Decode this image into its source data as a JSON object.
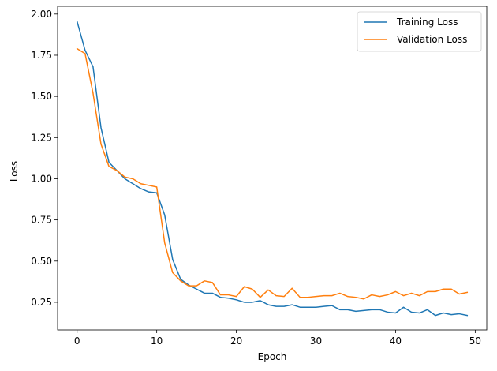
{
  "chart_data": {
    "type": "line",
    "title": "",
    "xlabel": "Epoch",
    "ylabel": "Loss",
    "xlim": [
      -2.45,
      51.45
    ],
    "ylim": [
      0.082,
      2.047
    ],
    "xticks": [
      0,
      10,
      20,
      30,
      40,
      50
    ],
    "xtick_labels": [
      "0",
      "10",
      "20",
      "30",
      "40",
      "50"
    ],
    "yticks": [
      0.25,
      0.5,
      0.75,
      1.0,
      1.25,
      1.5,
      1.75,
      2.0
    ],
    "ytick_labels": [
      "0.25",
      "0.50",
      "0.75",
      "1.00",
      "1.25",
      "1.50",
      "1.75",
      "2.00"
    ],
    "grid": false,
    "legend_position": "top-right",
    "x": [
      0,
      1,
      2,
      3,
      4,
      5,
      6,
      7,
      8,
      9,
      10,
      11,
      12,
      13,
      14,
      15,
      16,
      17,
      18,
      19,
      20,
      21,
      22,
      23,
      24,
      25,
      26,
      27,
      28,
      29,
      30,
      31,
      32,
      33,
      34,
      35,
      36,
      37,
      38,
      39,
      40,
      41,
      42,
      43,
      44,
      45,
      46,
      47,
      48,
      49
    ],
    "series": [
      {
        "name": "Training Loss",
        "color": "#1f77b4",
        "values": [
          1.955,
          1.78,
          1.68,
          1.31,
          1.1,
          1.05,
          1.0,
          0.97,
          0.94,
          0.92,
          0.915,
          0.78,
          0.51,
          0.39,
          0.355,
          0.33,
          0.305,
          0.305,
          0.28,
          0.275,
          0.265,
          0.25,
          0.25,
          0.26,
          0.235,
          0.225,
          0.225,
          0.235,
          0.22,
          0.22,
          0.22,
          0.225,
          0.23,
          0.205,
          0.205,
          0.195,
          0.2,
          0.205,
          0.205,
          0.19,
          0.185,
          0.22,
          0.19,
          0.185,
          0.205,
          0.17,
          0.185,
          0.175,
          0.18,
          0.17
        ]
      },
      {
        "name": "Validation Loss",
        "color": "#ff7f0e",
        "values": [
          1.79,
          1.76,
          1.52,
          1.21,
          1.075,
          1.05,
          1.01,
          1.0,
          0.97,
          0.96,
          0.95,
          0.61,
          0.43,
          0.38,
          0.35,
          0.35,
          0.38,
          0.37,
          0.295,
          0.295,
          0.285,
          0.345,
          0.33,
          0.28,
          0.325,
          0.29,
          0.285,
          0.335,
          0.28,
          0.28,
          0.285,
          0.29,
          0.29,
          0.305,
          0.285,
          0.28,
          0.27,
          0.295,
          0.285,
          0.295,
          0.315,
          0.29,
          0.305,
          0.29,
          0.315,
          0.315,
          0.33,
          0.33,
          0.3,
          0.31
        ]
      }
    ]
  }
}
